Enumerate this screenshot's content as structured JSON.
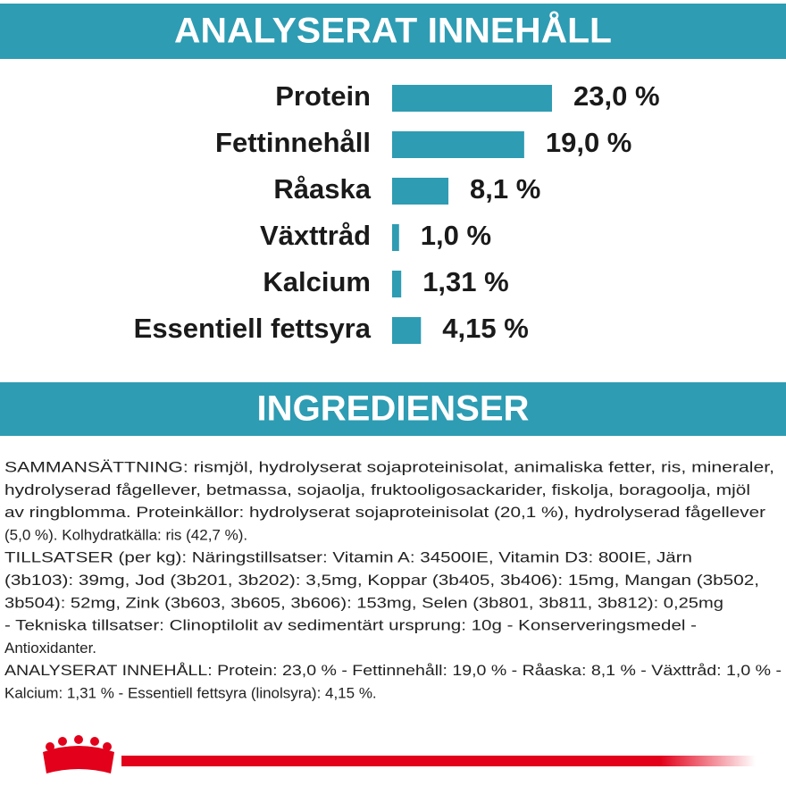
{
  "chart_data": {
    "type": "bar",
    "title": "ANALYSERAT INNEHÅLL",
    "categories": [
      "Protein",
      "Fettinnehåll",
      "Råaska",
      "Växttråd",
      "Kalcium",
      "Essentiell fettsyra"
    ],
    "values": [
      23.0,
      19.0,
      8.1,
      1.0,
      1.31,
      4.15
    ],
    "value_labels": [
      "23,0 %",
      "19,0 %",
      "8,1 %",
      "1,0 %",
      "1,31 %",
      "4,15 %"
    ],
    "color": "#2e9cb3"
  },
  "ingredients": {
    "title": "INGREDIENSER",
    "lines": [
      "SAMMANSÄTTNING: rismjöl, hydrolyserat sojaproteinisolat, animaliska fetter, ris, mineraler,",
      "hydrolyserad fågellever, betmassa, sojaolja, fruktooligosackarider, fiskolja, boragoolja, mjöl",
      "av ringblomma. Proteinkällor: hydrolyserat sojaproteinisolat (20,1 %), hydrolyserad fågellever",
      "(5,0 %). Kolhydratkälla: ris (42,7 %).",
      "TILLSATSER (per kg): Näringstillsatser: Vitamin A: 34500IE, Vitamin D3: 800IE, Järn",
      "(3b103): 39mg, Jod (3b201, 3b202): 3,5mg, Koppar (3b405, 3b406): 15mg, Mangan (3b502,",
      "3b504): 52mg, Zink (3b603, 3b605, 3b606): 153mg, Selen (3b801, 3b811, 3b812): 0,25mg",
      "- Tekniska tillsatser: Clinoptilolit av sedimentärt ursprung: 10g - Konserveringsmedel -",
      "Antioxidanter.",
      "ANALYSERAT INNEHÅLL: Protein: 23,0 % - Fettinnehåll: 19,0 % - Råaska: 8,1 % - Växttråd: 1,0 % -",
      "Kalcium: 1,31 % - Essentiell fettsyra (linolsyra): 4,15 %."
    ]
  }
}
